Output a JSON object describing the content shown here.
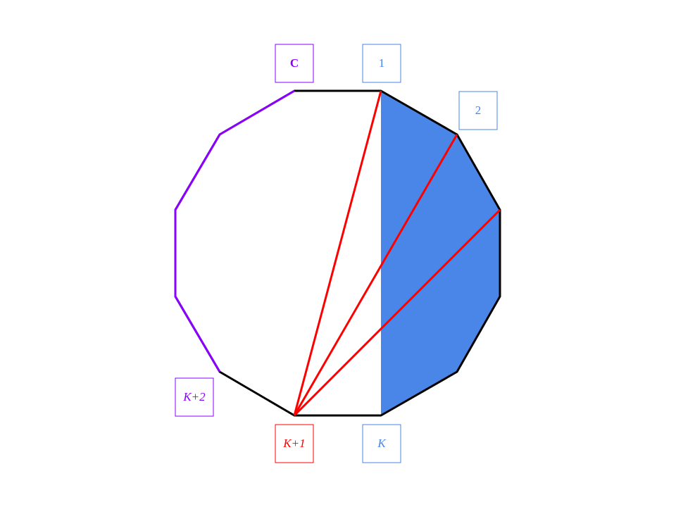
{
  "colors": {
    "background": "#ffffff",
    "outline": "#000000",
    "shaded_region": "#4a86e8",
    "diagonals": "#ff0000",
    "highlighted_edges": "#8b00ff",
    "label_blue": "#4a86e8",
    "label_red": "#ff0000",
    "label_purple": "#8b00ff"
  },
  "diagram": {
    "shape": "dodecagon",
    "shaded_region_description": "",
    "labels": {
      "c": "C",
      "v1": "1",
      "v2": "2",
      "vk": "K",
      "vk1": "K+1",
      "vk2": "K+2"
    }
  }
}
